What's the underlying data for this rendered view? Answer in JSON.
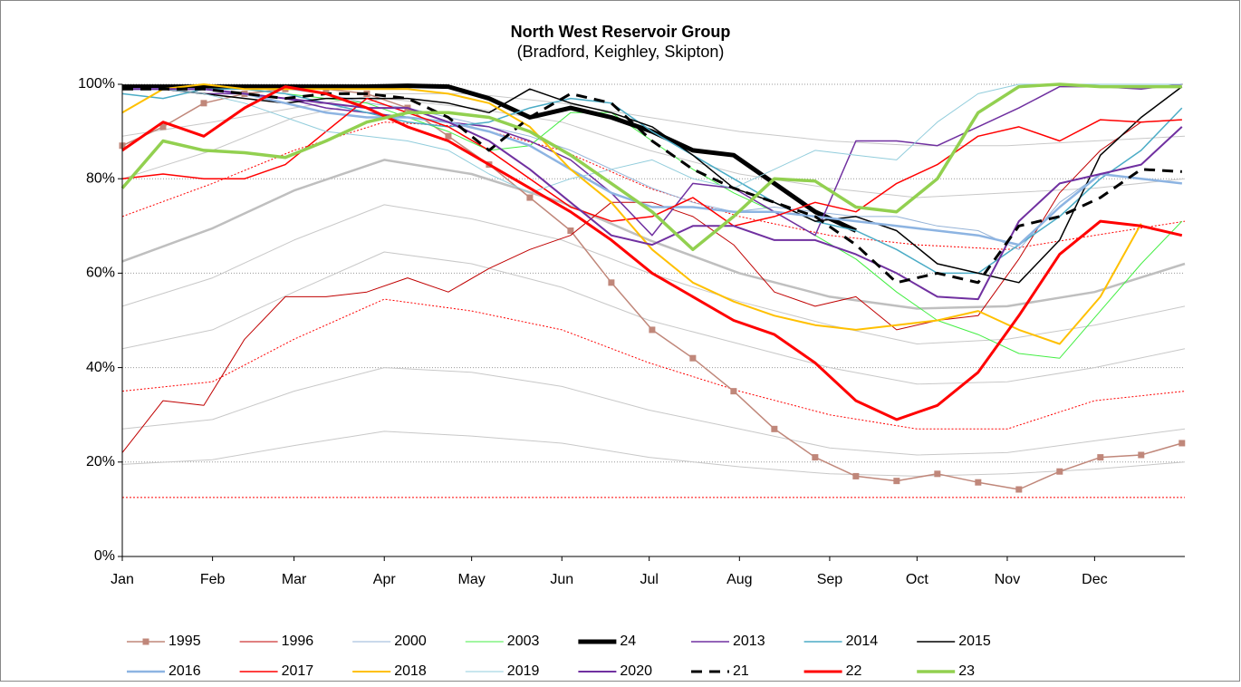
{
  "chart_data": {
    "type": "line",
    "title": "North West Reservoir Group",
    "subtitle": "(Bradford, Keighley, Skipton)",
    "x": [
      1,
      15,
      29,
      43,
      57,
      71,
      85,
      99,
      113,
      127,
      141,
      155,
      169,
      183,
      197,
      211,
      225,
      239,
      253,
      267,
      281,
      295,
      309,
      323,
      337,
      351,
      365
    ],
    "xlim": [
      1,
      366
    ],
    "xticks": [
      {
        "value": 1,
        "label": "Jan"
      },
      {
        "value": 32,
        "label": "Feb"
      },
      {
        "value": 60,
        "label": "Mar"
      },
      {
        "value": 91,
        "label": "Apr"
      },
      {
        "value": 121,
        "label": "May"
      },
      {
        "value": 152,
        "label": "Jun"
      },
      {
        "value": 182,
        "label": "Jul"
      },
      {
        "value": 213,
        "label": "Aug"
      },
      {
        "value": 244,
        "label": "Sep"
      },
      {
        "value": 274,
        "label": "Oct"
      },
      {
        "value": 305,
        "label": "Nov"
      },
      {
        "value": 335,
        "label": "Dec"
      }
    ],
    "ylim": [
      0,
      100
    ],
    "yticks": [
      {
        "value": 0,
        "label": "0%"
      },
      {
        "value": 20,
        "label": "20%"
      },
      {
        "value": 40,
        "label": "40%"
      },
      {
        "value": 60,
        "label": "60%"
      },
      {
        "value": 80,
        "label": "80%"
      },
      {
        "value": 100,
        "label": "100%"
      }
    ],
    "grid": true,
    "legend": "bottom",
    "reference_lines": {
      "x": [
        1,
        32,
        60,
        91,
        121,
        152,
        182,
        213,
        244,
        274,
        305,
        335,
        366
      ],
      "series": [
        {
          "color": "#c8c8c8",
          "width": 1,
          "dash": false,
          "values": [
            89,
            92,
            95,
            98,
            98,
            96,
            93,
            90,
            88,
            87,
            87,
            88,
            89
          ]
        },
        {
          "color": "#c8c8c8",
          "width": 1,
          "dash": false,
          "values": [
            80,
            86,
            93,
            97,
            95,
            92,
            86,
            81,
            78,
            76,
            77,
            78,
            80
          ]
        },
        {
          "color": "#bfbfbf",
          "width": 2.5,
          "dash": false,
          "values": [
            62.5,
            69.5,
            77.5,
            84,
            81,
            75,
            67,
            60,
            55,
            52.5,
            53,
            56,
            62
          ]
        },
        {
          "color": "#c8c8c8",
          "width": 1,
          "dash": false,
          "values": [
            53,
            59,
            67,
            74.5,
            71.5,
            67,
            60,
            54,
            49,
            45,
            46,
            49,
            53
          ]
        },
        {
          "color": "#c8c8c8",
          "width": 1,
          "dash": false,
          "values": [
            44,
            48,
            56,
            64.5,
            62,
            57,
            50,
            45,
            40,
            36.5,
            37,
            40,
            44
          ]
        },
        {
          "color": "#c8c8c8",
          "width": 1,
          "dash": false,
          "values": [
            27,
            29,
            35,
            40,
            39,
            36,
            31,
            27,
            23,
            21.5,
            22,
            24.5,
            27
          ]
        },
        {
          "color": "#c8c8c8",
          "width": 1,
          "dash": false,
          "values": [
            19.5,
            20.5,
            23.5,
            26.5,
            25.5,
            24,
            21,
            19,
            17.5,
            17,
            17.5,
            18.5,
            20
          ]
        },
        {
          "color": "#ff0000",
          "width": 1,
          "dash": true,
          "values": [
            72,
            79,
            86,
            92,
            91,
            86,
            78,
            72,
            68,
            66,
            65,
            68,
            71
          ]
        },
        {
          "color": "#ff0000",
          "width": 1,
          "dash": true,
          "values": [
            35,
            37,
            46,
            54.5,
            52,
            48,
            41,
            35,
            30,
            27,
            27,
            33,
            35
          ]
        },
        {
          "color": "#ff0000",
          "width": 1,
          "dash": true,
          "values": [
            12.5,
            12.5,
            12.5,
            12.5,
            12.5,
            12.5,
            12.5,
            12.5,
            12.5,
            12.5,
            12.5,
            12.5,
            12.5
          ]
        }
      ]
    },
    "series": [
      {
        "name": "1995",
        "color": "#c0877a",
        "width": 1.5,
        "dash": false,
        "marker": "square",
        "values": [
          87,
          91,
          96,
          98,
          99,
          99,
          98,
          95,
          89,
          83,
          76,
          69,
          58,
          48,
          42,
          35,
          27,
          21,
          17,
          16,
          17.5,
          15.7,
          14.2,
          18,
          21,
          21.5,
          24
        ]
      },
      {
        "name": "1996",
        "color": "#c00000",
        "width": 1,
        "dash": false,
        "values": [
          22,
          33,
          32,
          46,
          55,
          55,
          56,
          59,
          56,
          61,
          65,
          68,
          75,
          75,
          72,
          66,
          56,
          53,
          55,
          48,
          50,
          51,
          63,
          77,
          86,
          92,
          92.5
        ]
      },
      {
        "name": "2000",
        "color": "#95b3d7",
        "width": 1,
        "dash": false,
        "values": [
          99,
          99,
          99,
          99,
          99,
          98,
          96,
          95,
          93,
          91,
          89,
          86,
          82,
          78,
          75,
          73,
          74,
          73,
          72,
          72,
          70,
          69,
          65,
          75,
          81,
          80,
          79
        ]
      },
      {
        "name": "2003",
        "color": "#44ee44",
        "width": 1,
        "dash": false,
        "values": [
          99,
          99,
          99,
          99,
          98,
          97,
          96,
          93,
          90,
          86,
          87,
          94,
          94,
          88,
          82,
          77,
          73,
          68,
          63,
          56,
          50,
          47,
          43,
          42,
          52,
          62,
          71
        ]
      },
      {
        "name": "24",
        "color": "#000000",
        "width": 5,
        "dash": false,
        "values": [
          99.5,
          99.5,
          99.5,
          99.5,
          99.5,
          99.5,
          99.5,
          99.7,
          99.5,
          97,
          93,
          95,
          93,
          90,
          86,
          85,
          79,
          73,
          69,
          null,
          null,
          null,
          null,
          null,
          null,
          null,
          null
        ]
      },
      {
        "name": "2013",
        "color": "#7030a0",
        "width": 1.5,
        "dash": false,
        "values": [
          99,
          99,
          98,
          98,
          97,
          95,
          94,
          93,
          92,
          91,
          88,
          84,
          77,
          68,
          79,
          78,
          73,
          68,
          88,
          88,
          87,
          91,
          95,
          99.5,
          99.5,
          99,
          100
        ]
      },
      {
        "name": "2014",
        "color": "#4bacc6",
        "width": 1.5,
        "dash": false,
        "values": [
          98,
          97,
          99,
          99,
          98,
          96,
          94,
          92,
          91,
          92,
          95,
          97,
          96,
          90,
          85,
          80,
          75,
          71,
          69,
          65,
          60,
          60,
          66,
          72,
          80,
          86,
          95
        ]
      },
      {
        "name": "2015",
        "color": "#000000",
        "width": 1.5,
        "dash": false,
        "values": [
          99,
          99,
          98,
          97,
          96,
          97,
          97,
          97,
          96,
          94,
          99,
          96,
          94,
          91,
          85,
          78,
          75,
          71,
          72,
          69,
          62,
          60,
          58,
          67,
          85,
          93,
          99.5
        ]
      },
      {
        "name": "2016",
        "color": "#8db4e2",
        "width": 2.5,
        "dash": false,
        "values": [
          99,
          99,
          99,
          98,
          96,
          94,
          93,
          93,
          92,
          90,
          87,
          82,
          77,
          74,
          74,
          73,
          73,
          72,
          71,
          70,
          69,
          68,
          66,
          74,
          81,
          80,
          79
        ]
      },
      {
        "name": "2017",
        "color": "#ff0000",
        "width": 1.5,
        "dash": false,
        "values": [
          80,
          81,
          80,
          80,
          83,
          90,
          97,
          94,
          91,
          86,
          80,
          74,
          71,
          72,
          76,
          70,
          72,
          75,
          73,
          79,
          83,
          89,
          91,
          88,
          92.5,
          92,
          92.5
        ]
      },
      {
        "name": "2018",
        "color": "#ffc000",
        "width": 2,
        "dash": false,
        "values": [
          94,
          99,
          100,
          99,
          99,
          99,
          99,
          99,
          98,
          96,
          91,
          82,
          75,
          65,
          58,
          54,
          51,
          49,
          48,
          49,
          50,
          52,
          48,
          45,
          55,
          70.5,
          null
        ]
      },
      {
        "name": "2019",
        "color": "#92cddc",
        "width": 1,
        "dash": false,
        "values": [
          99,
          99,
          98,
          96,
          93,
          90,
          89,
          88,
          86,
          81,
          77,
          80,
          82,
          84,
          80,
          78,
          82,
          86,
          85,
          84,
          92,
          98,
          100,
          100,
          100,
          100,
          100
        ]
      },
      {
        "name": "2020",
        "color": "#7030a0",
        "width": 2,
        "dash": false,
        "values": [
          99,
          99,
          99,
          98,
          97,
          96,
          95,
          95,
          92,
          88,
          82,
          75,
          68,
          66,
          70,
          70,
          67,
          67,
          64,
          60,
          55,
          54.5,
          71,
          79,
          81,
          83,
          91
        ]
      },
      {
        "name": "21",
        "color": "#000000",
        "width": 3,
        "dash": true,
        "values": [
          99,
          99,
          99,
          98,
          97,
          98,
          98,
          97,
          93,
          86,
          93,
          98,
          96,
          88,
          82,
          78,
          75,
          72,
          66,
          58,
          60,
          58,
          70,
          72,
          76,
          82,
          81.5
        ]
      },
      {
        "name": "22",
        "color": "#ff0000",
        "width": 3,
        "dash": false,
        "values": [
          86,
          92,
          89,
          95,
          99.5,
          98,
          95,
          91,
          88,
          83,
          78,
          73,
          67,
          60,
          55,
          50,
          47,
          41,
          33,
          29,
          32,
          39,
          51,
          64,
          71,
          70,
          68
        ]
      },
      {
        "name": "23",
        "color": "#92d050",
        "width": 3.5,
        "dash": false,
        "values": [
          78,
          88,
          86,
          85.5,
          84.5,
          88,
          92,
          94,
          94,
          93,
          90,
          85,
          79,
          73,
          65,
          72,
          80,
          79.5,
          74,
          73,
          80,
          94,
          99.5,
          100,
          99.5,
          99.5,
          99.5
        ]
      }
    ]
  }
}
